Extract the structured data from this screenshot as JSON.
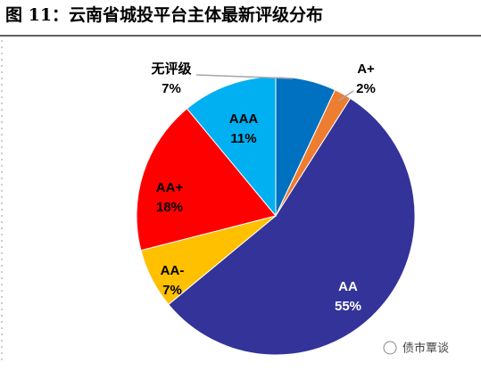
{
  "chart_data": {
    "type": "pie",
    "title": "图 11：云南省城投平台主体最新评级分布",
    "categories": [
      "无评级",
      "A+",
      "AA",
      "AA-",
      "AA+",
      "AAA"
    ],
    "values": [
      7,
      2,
      55,
      7,
      18,
      11
    ],
    "value_labels": [
      "7%",
      "2%",
      "55%",
      "7%",
      "18%",
      "11%"
    ],
    "colors": [
      "#0070c0",
      "#ed7d31",
      "#333399",
      "#ffc000",
      "#ff0000",
      "#00b0f0"
    ],
    "label_colors": [
      "#000000",
      "#000000",
      "#ffffff",
      "#000000",
      "#000000",
      "#000000"
    ],
    "watermark": "债市覃谈"
  }
}
